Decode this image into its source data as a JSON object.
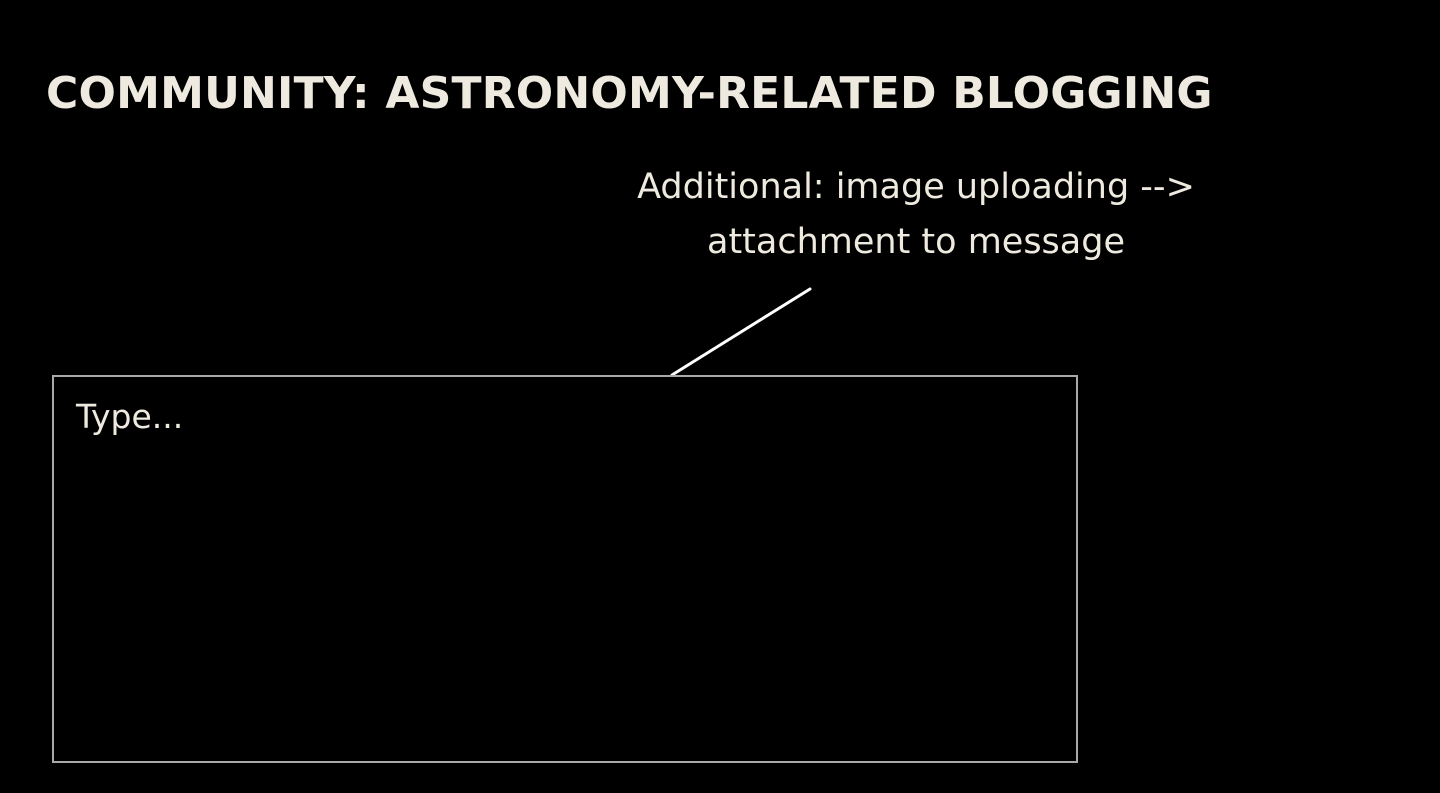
{
  "page": {
    "title": "COMMUNITY: ASTRONOMY-RELATED BLOGGING"
  },
  "annotation": {
    "text": "Additional: image uploading --> attachment to message"
  },
  "composer": {
    "value": "",
    "placeholder": "Type..."
  },
  "colors": {
    "background": "#000000",
    "text": "#efeae0",
    "box_border": "#a9a9a9",
    "connector": "#ffffff"
  }
}
